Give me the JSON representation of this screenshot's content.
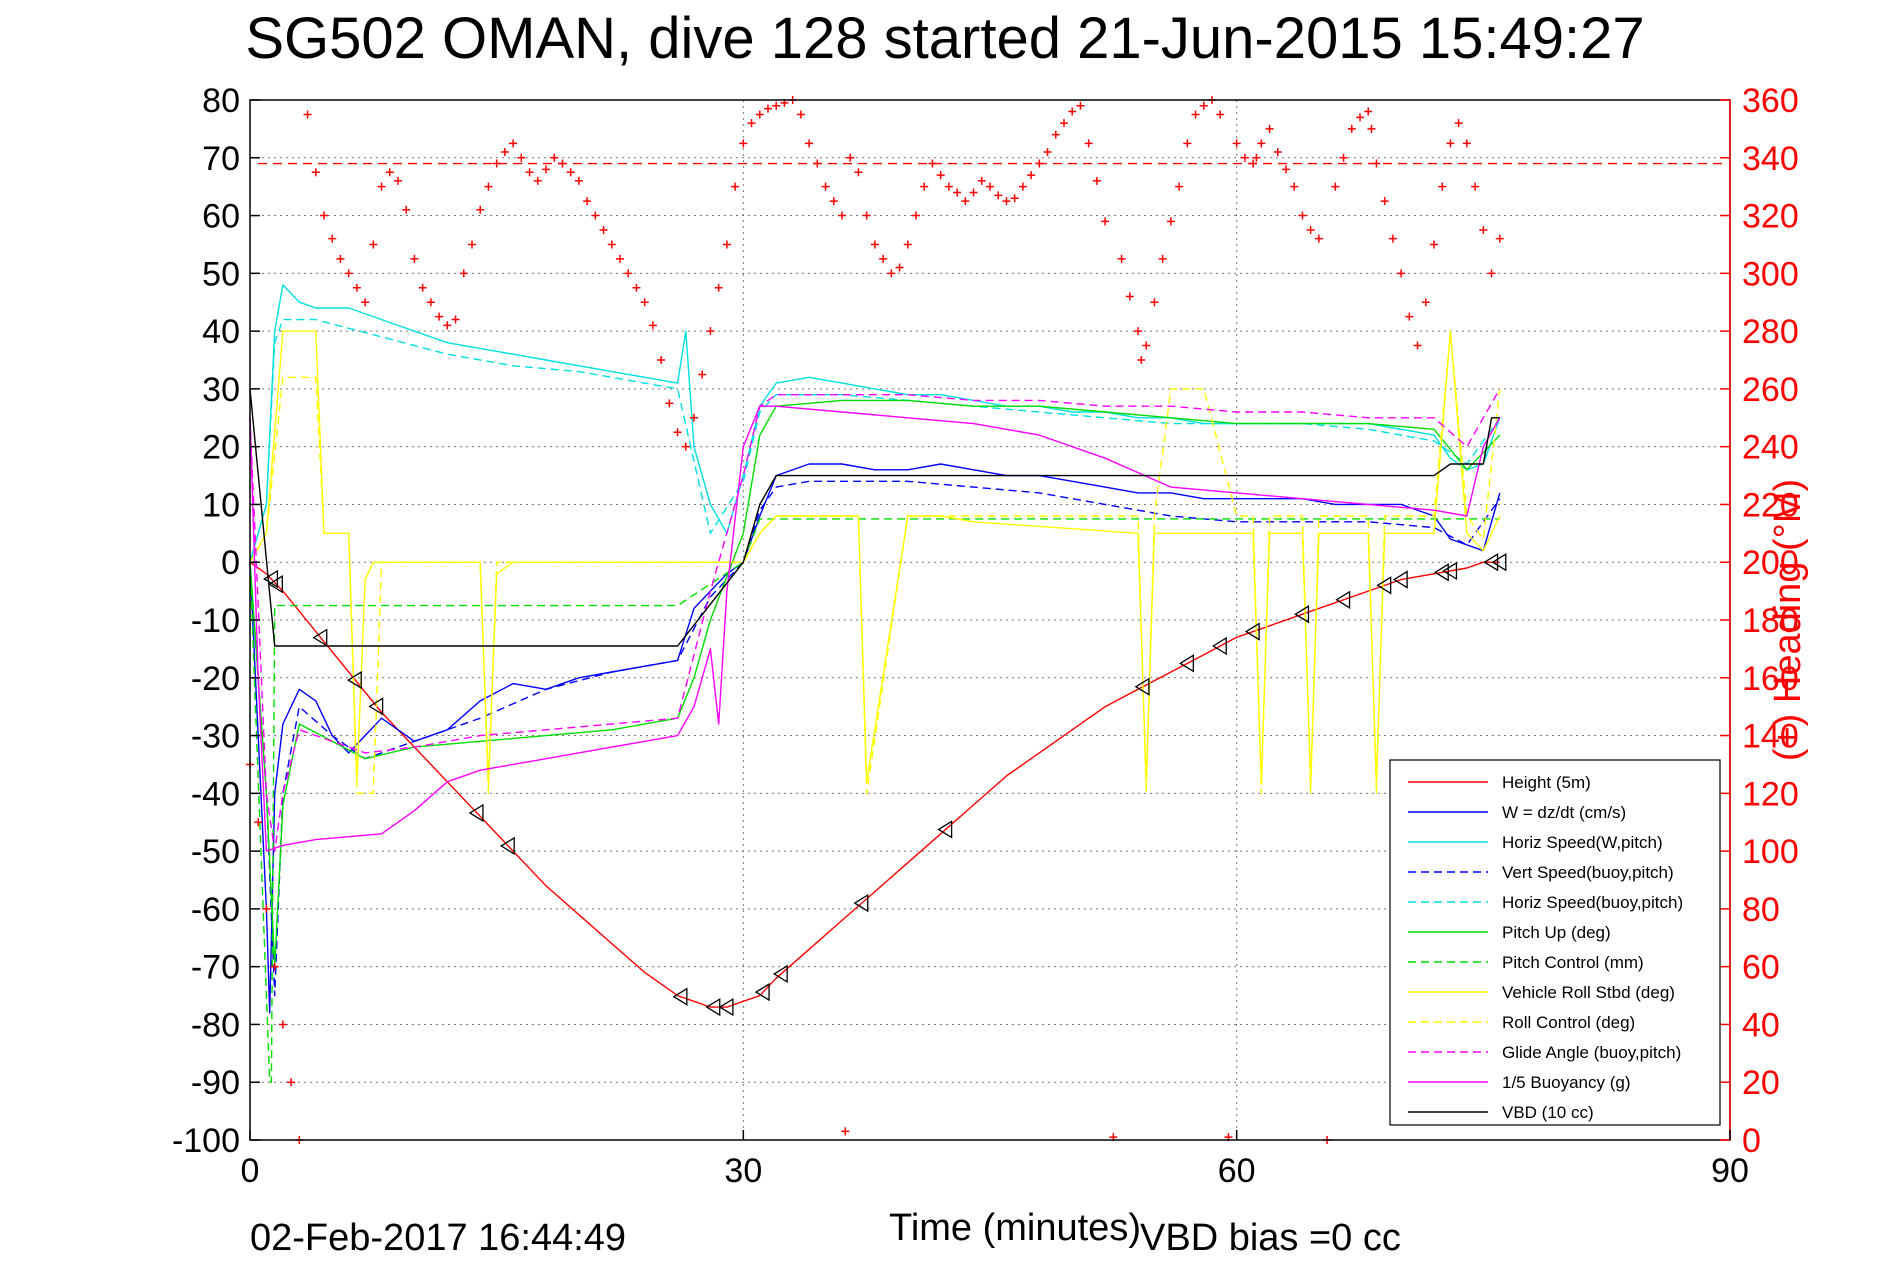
{
  "chart_data": {
    "type": "line",
    "title": "SG502 OMAN, dive 128 started 21-Jun-2015 15:49:27",
    "xlabel": "Time (minutes)",
    "ylabel": "",
    "y2label": "(+) Heading (°M)",
    "xlim": [
      0,
      90
    ],
    "ylim": [
      -100,
      80
    ],
    "y2lim": [
      0,
      360
    ],
    "xticks": [
      "0",
      "30",
      "60",
      "90"
    ],
    "yticks": [
      "80",
      "70",
      "60",
      "50",
      "40",
      "30",
      "20",
      "10",
      "0",
      "-10",
      "-20",
      "-30",
      "-40",
      "-50",
      "-60",
      "-70",
      "-80",
      "-90",
      "-100"
    ],
    "y2ticks": [
      "360",
      "340",
      "320",
      "300",
      "280",
      "260",
      "240",
      "220",
      "200",
      "180",
      "160",
      "140",
      "120",
      "100",
      "80",
      "60",
      "40",
      "20",
      "0"
    ],
    "grid": true,
    "legend_position": "bottom-right",
    "timestamp": "02-Feb-2017 16:44:49",
    "vbd_bias": "VBD bias =0 cc",
    "series": [
      {
        "name": "Height (5m)",
        "color": "#ff0000",
        "style": "solid",
        "x": [
          0,
          1,
          2,
          4,
          6,
          8,
          10,
          12,
          14,
          16,
          18,
          20,
          22,
          24,
          26,
          27,
          28,
          29,
          30,
          31,
          32,
          34,
          36,
          38,
          40,
          42,
          44,
          46,
          48,
          50,
          52,
          54,
          56,
          58,
          60,
          62,
          64,
          66,
          68,
          70,
          72,
          74,
          75,
          76
        ],
        "y": [
          0,
          -2,
          -5,
          -12,
          -19,
          -26,
          -32,
          -38,
          -44,
          -50,
          -56,
          -61,
          -66,
          -71,
          -75,
          -76,
          -77,
          -77,
          -76,
          -75,
          -72,
          -67,
          -62,
          -57,
          -52,
          -47,
          -42,
          -37,
          -33,
          -29,
          -25,
          -22,
          -19,
          -16,
          -13,
          -11,
          -9,
          -7,
          -5,
          -3,
          -2,
          -1,
          0,
          0
        ]
      },
      {
        "name": "W = dz/dt (cm/s)",
        "color": "#0000ff",
        "style": "solid",
        "x": [
          0,
          0.5,
          1,
          1.2,
          1.5,
          2,
          3,
          4,
          5,
          6,
          7,
          8,
          9,
          10,
          12,
          14,
          16,
          18,
          20,
          22,
          24,
          26,
          27,
          28,
          29,
          30,
          31,
          32,
          34,
          36,
          38,
          40,
          42,
          44,
          46,
          48,
          50,
          52,
          54,
          56,
          58,
          60,
          62,
          64,
          66,
          68,
          70,
          72,
          73,
          74,
          75,
          76
        ],
        "y": [
          0,
          -30,
          -60,
          -78,
          -40,
          -28,
          -22,
          -24,
          -30,
          -33,
          -30,
          -27,
          -29,
          -31,
          -29,
          -24,
          -21,
          -22,
          -20,
          -19,
          -18,
          -17,
          -8,
          -5,
          -2,
          0,
          8,
          15,
          17,
          17,
          16,
          16,
          17,
          16,
          15,
          15,
          14,
          13,
          12,
          12,
          11,
          11,
          11,
          11,
          10,
          10,
          10,
          8,
          4,
          3,
          2,
          12
        ]
      },
      {
        "name": "Horiz Speed(W,pitch)",
        "color": "#00e0e0",
        "style": "solid",
        "x": [
          0,
          1,
          1.5,
          2,
          3,
          4,
          6,
          8,
          10,
          12,
          14,
          16,
          18,
          20,
          22,
          24,
          26,
          26.5,
          27,
          28,
          29,
          30,
          31,
          32,
          34,
          36,
          38,
          40,
          42,
          44,
          46,
          48,
          50,
          52,
          54,
          56,
          58,
          60,
          62,
          64,
          66,
          68,
          70,
          72,
          73,
          74,
          75,
          76
        ],
        "y": [
          0,
          10,
          40,
          48,
          45,
          44,
          44,
          42,
          40,
          38,
          37,
          36,
          35,
          34,
          33,
          32,
          31,
          40,
          20,
          10,
          5,
          15,
          27,
          31,
          32,
          31,
          30,
          29,
          29,
          28,
          27,
          27,
          26,
          26,
          25,
          25,
          24,
          24,
          24,
          24,
          24,
          24,
          23,
          22,
          18,
          16,
          17,
          25
        ]
      },
      {
        "name": "Vert Speed(buoy,pitch)",
        "color": "#0000ff",
        "style": "dashed",
        "x": [
          0,
          1,
          1.5,
          2,
          3,
          5,
          7,
          10,
          14,
          18,
          22,
          26,
          28,
          30,
          31,
          32,
          34,
          36,
          40,
          44,
          48,
          52,
          56,
          60,
          64,
          68,
          72,
          74,
          76
        ],
        "y": [
          0,
          -40,
          -75,
          -40,
          -25,
          -30,
          -34,
          -31,
          -27,
          -22,
          -19,
          -17,
          -6,
          0,
          9,
          13,
          14,
          14,
          14,
          13,
          12,
          10,
          8,
          7,
          7,
          7,
          6,
          3,
          11
        ]
      },
      {
        "name": "Horiz Speed(buoy,pitch)",
        "color": "#00e0e0",
        "style": "dashed",
        "x": [
          0,
          1,
          1.5,
          2,
          4,
          8,
          12,
          16,
          20,
          24,
          26,
          28,
          30,
          31,
          32,
          36,
          40,
          44,
          48,
          52,
          56,
          60,
          64,
          68,
          72,
          74,
          76
        ],
        "y": [
          0,
          10,
          38,
          42,
          42,
          39,
          36,
          34,
          33,
          31,
          30,
          5,
          14,
          26,
          29,
          29,
          28,
          27,
          26,
          25,
          24,
          24,
          24,
          23,
          21,
          17,
          25
        ]
      },
      {
        "name": "Pitch Up (deg)",
        "color": "#00dd00",
        "style": "solid",
        "x": [
          0,
          1,
          1.5,
          2,
          3,
          5,
          7,
          10,
          14,
          18,
          22,
          26,
          27,
          28,
          30,
          31,
          32,
          36,
          40,
          44,
          48,
          52,
          56,
          60,
          64,
          68,
          72,
          74,
          76
        ],
        "y": [
          0,
          -40,
          -70,
          -42,
          -28,
          -31,
          -34,
          -32,
          -31,
          -30,
          -29,
          -27,
          -20,
          -10,
          5,
          22,
          27,
          28,
          28,
          27,
          27,
          26,
          25,
          24,
          24,
          24,
          23,
          16,
          22
        ]
      },
      {
        "name": "Pitch Control (mm)",
        "color": "#00dd00",
        "style": "dashed",
        "x": [
          0,
          1.2,
          1.3,
          1.5,
          26,
          30,
          31,
          76
        ],
        "y": [
          0,
          -90,
          -90,
          -7.5,
          -7.5,
          0,
          7.5,
          7.5
        ]
      },
      {
        "name": "Vehicle Roll Stbd (deg)",
        "color": "#ffff00",
        "style": "solid",
        "x": [
          0,
          1,
          2,
          4,
          4.5,
          6,
          6.5,
          7,
          7.5,
          8,
          10,
          14,
          14.5,
          15,
          16,
          20,
          26,
          28,
          30,
          31,
          32,
          36,
          37,
          37.5,
          40,
          42,
          44,
          54,
          54.5,
          55,
          60,
          61,
          61.5,
          62,
          64,
          64.5,
          65,
          68,
          68.5,
          69,
          72,
          73,
          74,
          75,
          76
        ],
        "y": [
          0,
          5,
          40,
          40,
          5,
          5,
          -38,
          -3,
          0,
          0,
          0,
          0,
          -38,
          -2,
          0,
          0,
          0,
          0,
          0,
          5,
          8,
          8,
          8,
          -38,
          8,
          8,
          7,
          5,
          -38,
          5,
          5,
          5,
          -38,
          5,
          5,
          -38,
          5,
          5,
          -38,
          5,
          5,
          40,
          5,
          2,
          8
        ]
      },
      {
        "name": "Roll Control (deg)",
        "color": "#ffff00",
        "style": "dashed",
        "x": [
          0,
          1,
          2,
          4,
          4.5,
          6,
          6.5,
          7.5,
          8,
          14,
          14.5,
          15,
          26,
          28,
          30,
          31,
          32,
          36,
          37,
          37.5,
          40,
          42,
          54,
          54.5,
          55,
          56,
          58,
          60,
          61,
          61.5,
          62,
          64,
          64.5,
          65,
          68,
          68.5,
          69,
          72,
          73,
          74,
          75,
          76
        ],
        "y": [
          0,
          5,
          32,
          32,
          5,
          5,
          -40,
          -40,
          0,
          0,
          -40,
          0,
          0,
          0,
          0,
          5,
          8,
          8,
          8,
          -40,
          8,
          8,
          8,
          -40,
          8,
          30,
          30,
          8,
          8,
          -40,
          8,
          8,
          -40,
          8,
          8,
          -40,
          8,
          8,
          40,
          8,
          4,
          30
        ]
      },
      {
        "name": "Glide Angle (buoy,pitch)",
        "color": "#ff00ff",
        "style": "dashed",
        "x": [
          0,
          1,
          1.5,
          2,
          3,
          5,
          7,
          10,
          14,
          18,
          22,
          26,
          28,
          30,
          31,
          32,
          36,
          40,
          44,
          48,
          52,
          56,
          60,
          64,
          68,
          72,
          74,
          76
        ],
        "y": [
          25,
          -40,
          -50,
          -40,
          -29,
          -31,
          -33,
          -32,
          -30,
          -29,
          -28,
          -27,
          -5,
          15,
          27,
          29,
          29,
          29,
          28,
          28,
          27,
          27,
          26,
          26,
          25,
          25,
          20,
          30
        ]
      },
      {
        "name": "1/5 Buoyancy (g)",
        "color": "#ff00ff",
        "style": "solid",
        "x": [
          0,
          0.5,
          1,
          2,
          4,
          8,
          10,
          12,
          14,
          18,
          22,
          26,
          27,
          28,
          28.5,
          29,
          30,
          31,
          32,
          36,
          40,
          44,
          48,
          52,
          56,
          60,
          64,
          68,
          72,
          74,
          75,
          76
        ],
        "y": [
          25,
          -20,
          -50,
          -49,
          -48,
          -47,
          -43,
          -38,
          -36,
          -34,
          -32,
          -30,
          -25,
          -15,
          -28,
          -5,
          20,
          27,
          27,
          26,
          25,
          24,
          22,
          18,
          13,
          12,
          11,
          10,
          9,
          8,
          20,
          25
        ]
      },
      {
        "name": "VBD (10 cc)",
        "color": "#000000",
        "style": "solid",
        "x": [
          0,
          1.5,
          1.6,
          26,
          30,
          31,
          32,
          36,
          40,
          44,
          48,
          52,
          56,
          60,
          64,
          68,
          72,
          73,
          75,
          75.5,
          76
        ],
        "y": [
          30,
          -14.5,
          -14.5,
          -14.5,
          0,
          10,
          15,
          15,
          15,
          15,
          15,
          15,
          15,
          15,
          15,
          15,
          15,
          17,
          17,
          25,
          25
        ]
      }
    ],
    "heading_series": {
      "name": "(+) Heading",
      "color": "#ff0000",
      "marker": "+",
      "axis": "right",
      "reference_heading": 338,
      "x": [
        0,
        0.5,
        1,
        1.5,
        2,
        2.5,
        3,
        3.5,
        4,
        4.5,
        5,
        5.5,
        6,
        6.5,
        7,
        7.5,
        8,
        8.5,
        9,
        9.5,
        10,
        10.5,
        11,
        11.5,
        12,
        12.5,
        13,
        13.5,
        14,
        14.5,
        15,
        15.5,
        16,
        16.5,
        17,
        17.5,
        18,
        18.5,
        19,
        19.5,
        20,
        20.5,
        21,
        21.5,
        22,
        22.5,
        23,
        23.5,
        24,
        24.5,
        25,
        25.5,
        26,
        26.5,
        27,
        27.5,
        28,
        28.5,
        29,
        29.5,
        30,
        30.5,
        31,
        31.5,
        32,
        32.5,
        33,
        33.5,
        34,
        34.5,
        35,
        35.5,
        36,
        36.2,
        36.5,
        37,
        37.5,
        38,
        38.5,
        39,
        39.5,
        40,
        40.5,
        41,
        41.5,
        42,
        42.5,
        43,
        43.5,
        44,
        44.5,
        45,
        45.5,
        46,
        46.5,
        47,
        47.5,
        48,
        48.5,
        49,
        49.5,
        50,
        50.5,
        51,
        51.5,
        52,
        52.5,
        53,
        53.5,
        54,
        54.2,
        54.5,
        55,
        55.5,
        56,
        56.5,
        57,
        57.5,
        58,
        58.5,
        59,
        59.5,
        60,
        60.5,
        61,
        61.2,
        61.5,
        62,
        62.5,
        63,
        63.5,
        64,
        64.5,
        65,
        65.5,
        66,
        66.5,
        67,
        67.5,
        68,
        68.2,
        68.5,
        69,
        69.5,
        70,
        70.5,
        71,
        71.5,
        72,
        72.5,
        73,
        73.5,
        74,
        74.5,
        75,
        75.5,
        76
      ],
      "y": [
        130,
        110,
        80,
        60,
        40,
        20,
        0,
        355,
        335,
        320,
        312,
        305,
        300,
        295,
        290,
        310,
        330,
        335,
        332,
        322,
        305,
        295,
        290,
        285,
        282,
        284,
        300,
        310,
        322,
        330,
        338,
        342,
        345,
        340,
        335,
        332,
        336,
        340,
        338,
        335,
        332,
        325,
        320,
        315,
        310,
        305,
        300,
        295,
        290,
        282,
        270,
        255,
        245,
        240,
        250,
        265,
        280,
        295,
        310,
        330,
        345,
        352,
        355,
        357,
        358,
        359,
        360,
        355,
        345,
        338,
        330,
        325,
        320,
        3,
        340,
        335,
        320,
        310,
        305,
        300,
        302,
        310,
        320,
        330,
        338,
        334,
        330,
        328,
        325,
        328,
        332,
        330,
        327,
        325,
        326,
        330,
        334,
        338,
        342,
        348,
        352,
        356,
        358,
        345,
        332,
        318,
        1,
        305,
        292,
        280,
        270,
        275,
        290,
        305,
        318,
        330,
        345,
        355,
        358,
        360,
        355,
        1,
        345,
        340,
        338,
        340,
        345,
        350,
        342,
        336,
        330,
        320,
        315,
        312,
        0,
        330,
        340,
        350,
        354,
        356,
        350,
        338,
        325,
        312,
        300,
        285,
        275,
        290,
        310,
        330,
        345,
        352,
        345,
        330,
        315,
        300,
        312
      ]
    }
  }
}
